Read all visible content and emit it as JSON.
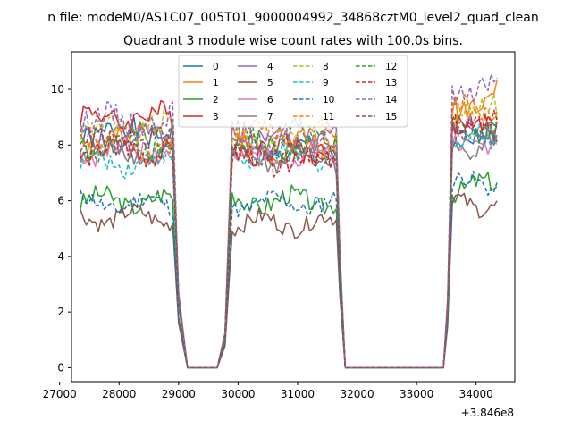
{
  "figure": {
    "suptitle": "n file: modeM0/AS1C07_005T01_9000004992_34868cztM0_level2_quad_clean",
    "title": "Quadrant 3 module wise count rates with 100.0s bins."
  },
  "chart_data": {
    "type": "line",
    "title": "Quadrant 3 module wise count rates with 100.0s bins.",
    "xlabel": "",
    "ylabel": "",
    "x_offset_label": "+3.846e8",
    "xlim": [
      27200,
      34650
    ],
    "ylim": [
      -0.5,
      11.35
    ],
    "xticks": [
      27000,
      28000,
      29000,
      30000,
      31000,
      32000,
      33000,
      34000
    ],
    "yticks": [
      0,
      2,
      4,
      6,
      8,
      10
    ],
    "grid": false,
    "legend": {
      "placement": "upper-center",
      "columns": 4
    },
    "segments": [
      {
        "x_start": 27350,
        "x_end": 28900
      },
      {
        "x_start": 29900,
        "x_end": 31650
      },
      {
        "x_start": 33600,
        "x_end": 34350
      }
    ],
    "gaps": [
      {
        "drop_start": 28900,
        "zero_start": 29150,
        "zero_end": 29650,
        "rise_end": 29900
      },
      {
        "drop_start": 31650,
        "zero_start": 31800,
        "zero_end": 33450,
        "rise_end": 33600
      }
    ],
    "series": [
      {
        "name": "0",
        "color": "#1f77b4",
        "dash": "solid",
        "levels": [
          8.5,
          7.8,
          8.4
        ],
        "amp": 0.4
      },
      {
        "name": "1",
        "color": "#ff7f0e",
        "dash": "solid",
        "levels": [
          8.0,
          8.0,
          9.6
        ],
        "amp": 0.5
      },
      {
        "name": "2",
        "color": "#2ca02c",
        "dash": "solid",
        "levels": [
          6.0,
          6.0,
          6.5
        ],
        "amp": 0.35
      },
      {
        "name": "3",
        "color": "#d62728",
        "dash": "solid",
        "levels": [
          9.0,
          7.9,
          8.7
        ],
        "amp": 0.45
      },
      {
        "name": "4",
        "color": "#9467bd",
        "dash": "solid",
        "levels": [
          8.2,
          8.2,
          8.5
        ],
        "amp": 0.4
      },
      {
        "name": "5",
        "color": "#8c564b",
        "dash": "solid",
        "levels": [
          5.4,
          5.2,
          5.9
        ],
        "amp": 0.3
      },
      {
        "name": "6",
        "color": "#e377c2",
        "dash": "solid",
        "levels": [
          7.8,
          7.6,
          8.1
        ],
        "amp": 0.4
      },
      {
        "name": "7",
        "color": "#7f7f7f",
        "dash": "solid",
        "levels": [
          7.7,
          7.5,
          8.0
        ],
        "amp": 0.35
      },
      {
        "name": "8",
        "color": "#bcbd22",
        "dash": "dashed",
        "levels": [
          8.6,
          8.3,
          9.3
        ],
        "amp": 0.45
      },
      {
        "name": "9",
        "color": "#17becf",
        "dash": "dashed",
        "levels": [
          7.4,
          7.6,
          8.2
        ],
        "amp": 0.35
      },
      {
        "name": "10",
        "color": "#1f77b4",
        "dash": "dashed",
        "levels": [
          5.9,
          5.9,
          6.6
        ],
        "amp": 0.3
      },
      {
        "name": "11",
        "color": "#ff7f0e",
        "dash": "dashed",
        "levels": [
          8.2,
          8.4,
          9.4
        ],
        "amp": 0.45
      },
      {
        "name": "12",
        "color": "#2ca02c",
        "dash": "dashed",
        "levels": [
          8.0,
          8.0,
          8.6
        ],
        "amp": 0.4
      },
      {
        "name": "13",
        "color": "#d62728",
        "dash": "dashed",
        "levels": [
          7.8,
          7.5,
          8.8
        ],
        "amp": 0.4
      },
      {
        "name": "14",
        "color": "#9467bd",
        "dash": "dashed",
        "levels": [
          8.9,
          8.3,
          10.0
        ],
        "amp": 0.45
      },
      {
        "name": "15",
        "color": "#8c564b",
        "dash": "dashed",
        "levels": [
          8.1,
          7.8,
          8.4
        ],
        "amp": 0.4
      }
    ]
  }
}
